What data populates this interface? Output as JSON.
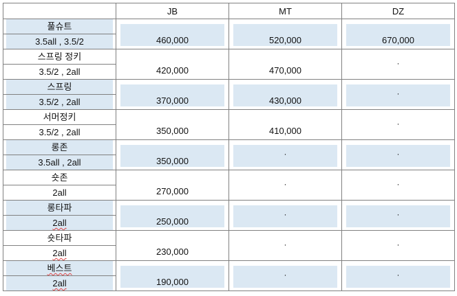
{
  "header": {
    "corner": "",
    "cols": [
      "JB",
      "MT",
      "DZ"
    ]
  },
  "rows": [
    {
      "name": "풀슈트",
      "spec": "3.5all , 3.5/2",
      "shaded": true,
      "values": [
        "460,000",
        "520,000",
        "670,000"
      ]
    },
    {
      "name": "스프링 정키",
      "spec": "3.5/2 , 2all",
      "shaded": false,
      "values": [
        "420,000",
        "470,000",
        "·"
      ]
    },
    {
      "name": "스프링",
      "spec": "3.5/2 , 2all",
      "shaded": true,
      "values": [
        "370,000",
        "430,000",
        "·"
      ]
    },
    {
      "name": "서머정키",
      "spec": "3.5/2 , 2all",
      "shaded": false,
      "values": [
        "350,000",
        "410,000",
        "·"
      ]
    },
    {
      "name": "롱존",
      "spec": "3.5all , 2all",
      "shaded": true,
      "values": [
        "350,000",
        "·",
        "·"
      ]
    },
    {
      "name": "숏존",
      "spec": "2all",
      "shaded": false,
      "values": [
        "270,000",
        "·",
        "·"
      ]
    },
    {
      "name": "롱타파",
      "spec": "2all",
      "shaded": true,
      "values": [
        "250,000",
        "·",
        "·"
      ]
    },
    {
      "name": "숏타파",
      "spec": "2all",
      "shaded": false,
      "values": [
        "230,000",
        "·",
        "·"
      ]
    },
    {
      "name": "베스트",
      "spec": "2all",
      "shaded": true,
      "values": [
        "190,000",
        "·",
        "·"
      ]
    }
  ]
}
